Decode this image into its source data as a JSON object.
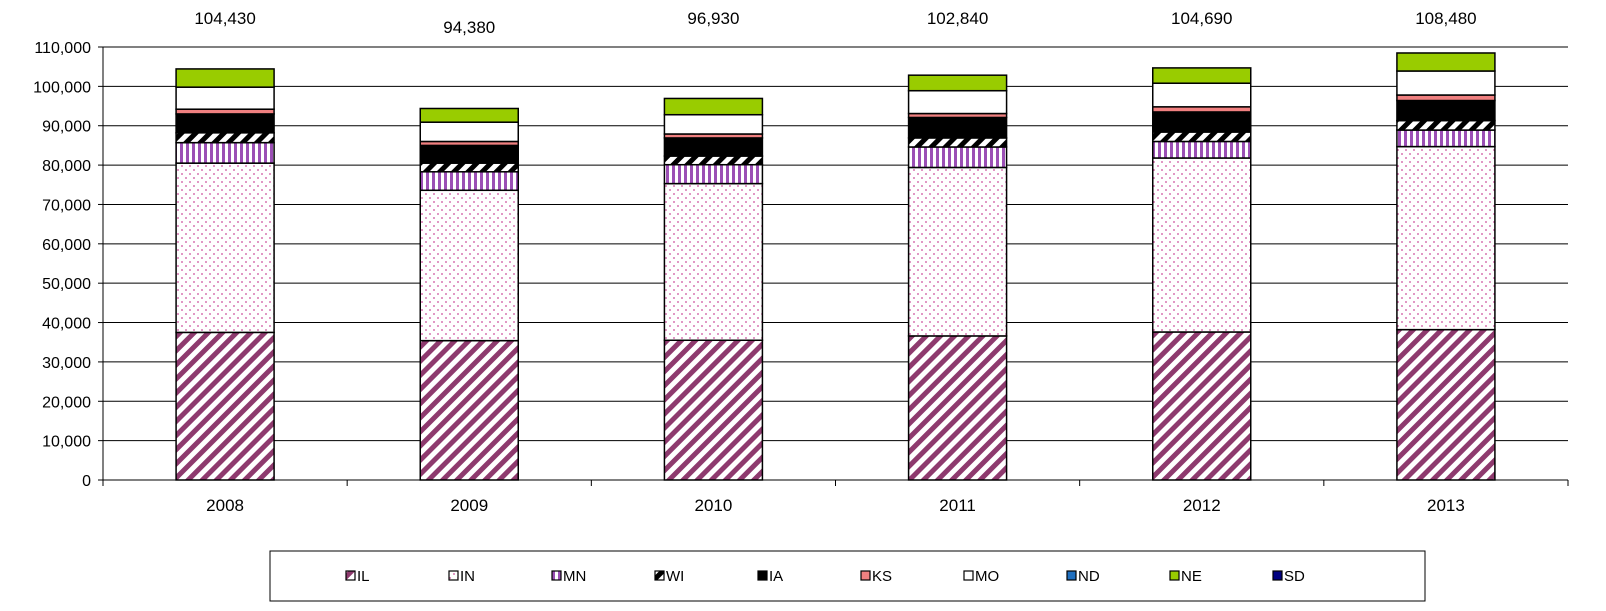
{
  "chart_data": {
    "type": "bar",
    "stacked": true,
    "categories": [
      "2008",
      "2009",
      "2010",
      "2011",
      "2012",
      "2013"
    ],
    "totals": [
      "104,430",
      "94,380",
      "96,930",
      "102,840",
      "104,690",
      "108,480"
    ],
    "ylim": [
      0,
      110000
    ],
    "yticks": [
      "0",
      "10,000",
      "20,000",
      "30,000",
      "40,000",
      "50,000",
      "60,000",
      "70,000",
      "80,000",
      "90,000",
      "100,000",
      "110,000"
    ],
    "grid": true,
    "legend_position": "bottom",
    "series": [
      {
        "name": "IL",
        "pattern": "diagonal-stripes",
        "color": "#8e3a6e",
        "values": [
          37500,
          35400,
          35500,
          36600,
          37600,
          38200
        ]
      },
      {
        "name": "IN",
        "pattern": "dots",
        "color": "#cc4f9c",
        "values": [
          43000,
          38200,
          39800,
          42800,
          44200,
          46500
        ]
      },
      {
        "name": "MN",
        "pattern": "vertical-stripes",
        "color": "#9b4fb5",
        "values": [
          5200,
          4700,
          4800,
          5200,
          4200,
          4200
        ]
      },
      {
        "name": "WI",
        "pattern": "diagonal-black",
        "color": "#000000",
        "values": [
          2500,
          2200,
          2200,
          2300,
          2400,
          2400
        ]
      },
      {
        "name": "IA",
        "pattern": "solid",
        "color": "#000000",
        "values": [
          4800,
          4500,
          4600,
          5200,
          5100,
          5100
        ]
      },
      {
        "name": "KS",
        "pattern": "solid",
        "color": "#f08080",
        "values": [
          1200,
          1000,
          1000,
          1000,
          1300,
          1400
        ]
      },
      {
        "name": "MO",
        "pattern": "solid",
        "color": "#ffffff",
        "values": [
          5600,
          4900,
          4900,
          5800,
          6000,
          6100
        ]
      },
      {
        "name": "ND",
        "pattern": "solid",
        "color": "#1f6fbf",
        "values": [
          0,
          0,
          0,
          0,
          0,
          0
        ]
      },
      {
        "name": "NE",
        "pattern": "solid",
        "color": "#99cc00",
        "values": [
          4630,
          3480,
          4130,
          3940,
          3890,
          4580
        ]
      },
      {
        "name": "SD",
        "pattern": "solid",
        "color": "#000080",
        "values": [
          0,
          0,
          0,
          0,
          0,
          0
        ]
      }
    ]
  }
}
